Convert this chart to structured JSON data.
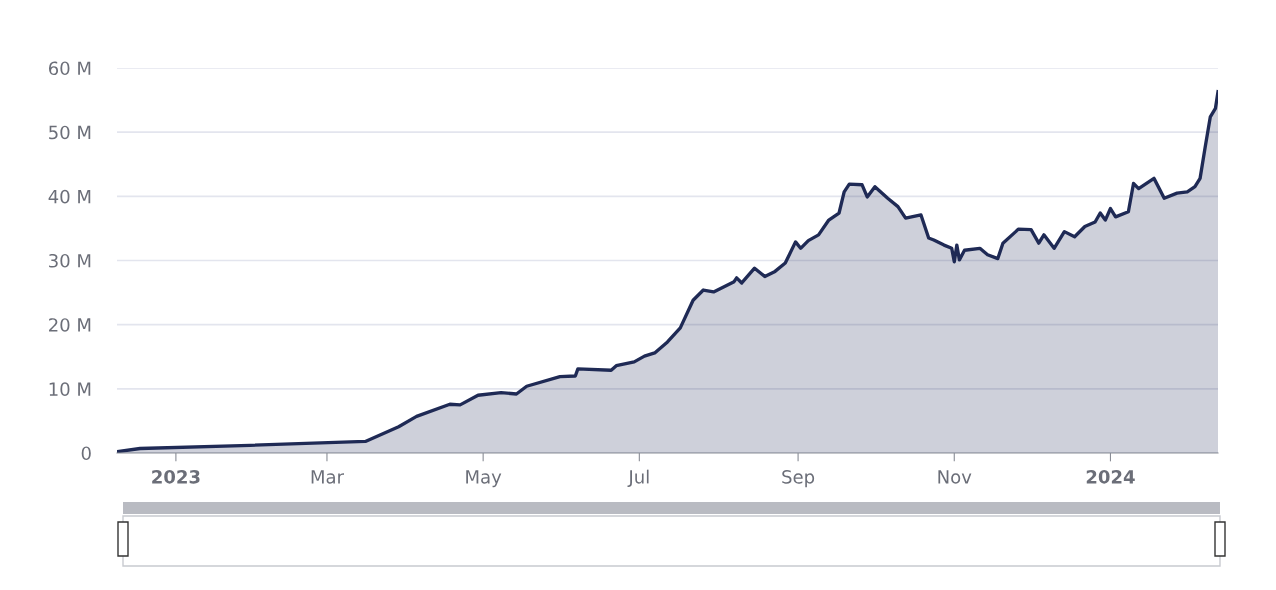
{
  "chart_data": {
    "type": "area",
    "x": [
      "2022-12-09",
      "2022-12-18",
      "2023-01-30",
      "2023-03-16",
      "2023-03-29",
      "2023-04-05",
      "2023-04-18",
      "2023-04-22",
      "2023-04-29",
      "2023-05-08",
      "2023-05-14",
      "2023-05-18",
      "2023-05-31",
      "2023-06-06",
      "2023-06-07",
      "2023-06-20",
      "2023-06-22",
      "2023-06-29",
      "2023-07-03",
      "2023-07-07",
      "2023-07-12",
      "2023-07-17",
      "2023-07-22",
      "2023-07-26",
      "2023-07-30",
      "2023-08-07",
      "2023-08-08",
      "2023-08-10",
      "2023-08-15",
      "2023-08-19",
      "2023-08-23",
      "2023-08-27",
      "2023-08-31",
      "2023-09-02",
      "2023-09-05",
      "2023-09-09",
      "2023-09-13",
      "2023-09-17",
      "2023-09-19",
      "2023-09-21",
      "2023-09-26",
      "2023-09-28",
      "2023-10-01",
      "2023-10-06",
      "2023-10-10",
      "2023-10-13",
      "2023-10-19",
      "2023-10-22",
      "2023-10-24",
      "2023-10-28",
      "2023-10-31",
      "2023-11-01",
      "2023-11-02",
      "2023-11-03",
      "2023-11-05",
      "2023-11-11",
      "2023-11-14",
      "2023-11-18",
      "2023-11-20",
      "2023-11-25",
      "2023-11-26",
      "2023-12-01",
      "2023-12-04",
      "2023-12-06",
      "2023-12-10",
      "2023-12-14",
      "2023-12-18",
      "2023-12-22",
      "2023-12-26",
      "2023-12-28",
      "2023-12-30",
      "2024-01-01",
      "2024-01-03",
      "2024-01-08",
      "2024-01-10",
      "2024-01-12",
      "2024-01-18",
      "2024-01-22",
      "2024-01-27",
      "2024-01-31",
      "2024-02-03",
      "2024-02-05",
      "2024-02-07",
      "2024-02-09",
      "2024-02-11",
      "2024-02-12"
    ],
    "series": [
      {
        "color": "#1f2a55",
        "values": [
          0.2,
          0.7,
          1.2,
          1.8,
          4.1,
          5.7,
          7.6,
          7.5,
          9.0,
          9.4,
          9.2,
          10.4,
          11.9,
          12.0,
          13.1,
          12.9,
          13.6,
          14.2,
          15.1,
          15.6,
          17.3,
          19.5,
          23.8,
          25.4,
          25.1,
          26.7,
          27.3,
          26.5,
          28.8,
          27.5,
          28.3,
          29.6,
          32.9,
          31.9,
          33.1,
          34.0,
          36.3,
          37.4,
          40.7,
          41.9,
          41.8,
          39.9,
          41.5,
          39.7,
          38.4,
          36.6,
          37.1,
          33.5,
          33.2,
          32.4,
          31.9,
          29.8,
          32.4,
          30.1,
          31.6,
          31.9,
          30.9,
          30.3,
          32.7,
          34.5,
          34.9,
          34.8,
          32.7,
          34.0,
          31.9,
          34.5,
          33.7,
          35.3,
          36.0,
          37.4,
          36.3,
          38.1,
          36.8,
          37.6,
          42.0,
          41.2,
          42.8,
          39.7,
          40.5,
          40.7,
          41.5,
          42.8,
          47.7,
          52.4,
          53.7,
          56.3
        ]
      }
    ],
    "xlim": [
      "2022-12-09",
      "2024-02-12"
    ],
    "xticks": [
      {
        "value": "2023-01-01",
        "label": "2023"
      },
      {
        "value": "2023-03-01",
        "label": "Mar"
      },
      {
        "value": "2023-05-01",
        "label": "May"
      },
      {
        "value": "2023-07-01",
        "label": "Jul"
      },
      {
        "value": "2023-09-01",
        "label": "Sep"
      },
      {
        "value": "2023-11-01",
        "label": "Nov"
      },
      {
        "value": "2024-01-01",
        "label": "2024"
      }
    ],
    "ylim": [
      0,
      60
    ],
    "yticks": [
      0,
      {
        "value": 10,
        "label": "10 M"
      },
      {
        "value": 20,
        "label": "20 M"
      },
      {
        "value": 30,
        "label": "30 M"
      },
      {
        "value": 40,
        "label": "40 M"
      },
      {
        "value": 50,
        "label": "50 M"
      },
      {
        "value": 60,
        "label": "60 M"
      }
    ],
    "grid": "y",
    "legend": false
  }
}
